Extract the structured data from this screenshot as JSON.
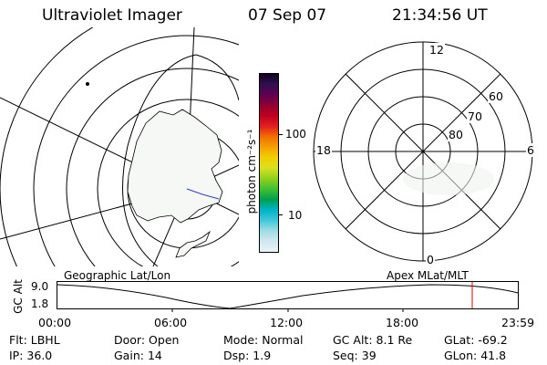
{
  "header": {
    "title": "Ultraviolet Imager",
    "date": "07 Sep 07",
    "time": "21:34:56 UT"
  },
  "colorbar": {
    "unit_label": "photon cm⁻²s⁻¹",
    "tick_100": "100",
    "tick_10": "10",
    "colors": [
      "#e8f4f8",
      "#d0e8ee",
      "#a0dce4",
      "#40c8d8",
      "#00b4c8",
      "#00a050",
      "#40c030",
      "#90d020",
      "#d8e020",
      "#f0d000",
      "#f4a000",
      "#f07000",
      "#e02020",
      "#c00020",
      "#900030",
      "#600050",
      "#301050",
      "#100020"
    ]
  },
  "polar_plot": {
    "mlt_labels": {
      "top": "12",
      "left": "18",
      "right": "6",
      "bottom": "0"
    },
    "lat_labels": [
      "60",
      "70",
      "80"
    ]
  },
  "orbit_plot": {
    "left_title": "Geographic Lat/Lon",
    "right_title": "Apex MLat/MLT",
    "y_label": "GC Alt",
    "y_max": "9.0",
    "y_min": "1.8",
    "x_ticks": [
      "00:00",
      "06:00",
      "12:00",
      "18:00",
      "23:59"
    ],
    "marker_color": "#e00000"
  },
  "status": {
    "row1": [
      {
        "label": "Flt:",
        "value": "LBHL"
      },
      {
        "label": "Door:",
        "value": "Open"
      },
      {
        "label": "Mode:",
        "value": "Normal"
      },
      {
        "label": "GC Alt:",
        "value": "8.1 Re"
      },
      {
        "label": "GLat:",
        "value": "-69.2"
      }
    ],
    "row2": [
      {
        "label": "IP:",
        "value": "36.0"
      },
      {
        "label": "Gain:",
        "value": "14"
      },
      {
        "label": "Dsp:",
        "value": "1.9"
      },
      {
        "label": "Seq:",
        "value": "39"
      },
      {
        "label": "GLon:",
        "value": "41.8"
      }
    ]
  }
}
